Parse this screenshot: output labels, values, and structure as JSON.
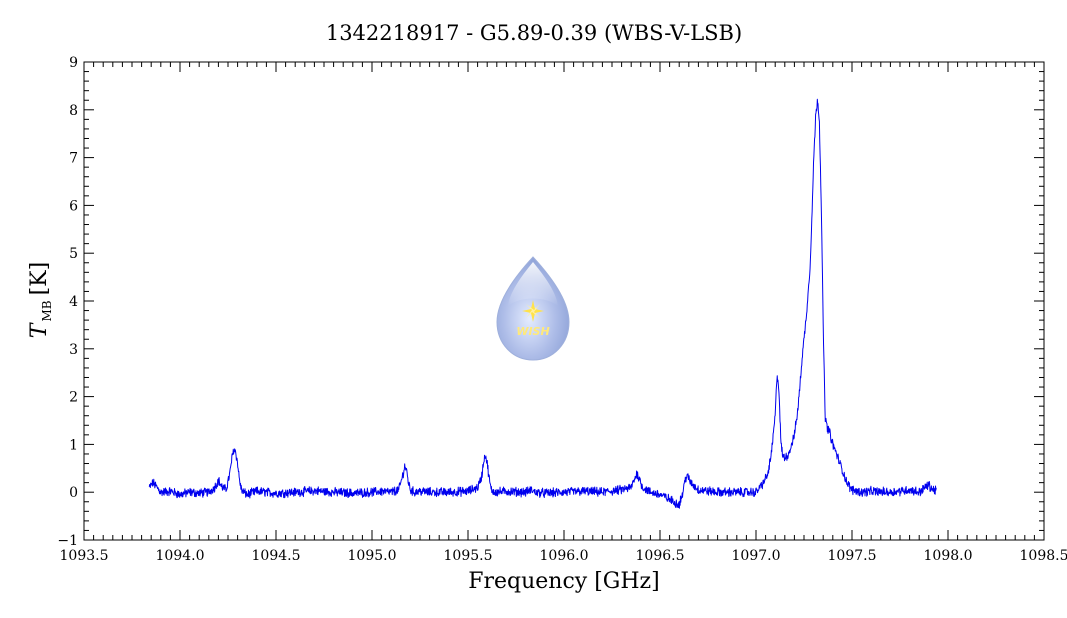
{
  "chart_data": {
    "type": "line",
    "title": "1342218917 - G5.89-0.39 (WBS-V-LSB)",
    "xlabel": "Frequency [GHz]",
    "ylabel_main": "T",
    "ylabel_sub": "MB",
    "ylabel_unit": "[K]",
    "xlim": [
      1093.5,
      1098.5
    ],
    "ylim": [
      -1,
      9
    ],
    "xticks": [
      1093.5,
      1094.0,
      1094.5,
      1095.0,
      1095.5,
      1096.0,
      1096.5,
      1097.0,
      1097.5,
      1098.0,
      1098.5
    ],
    "xtick_labels": [
      "1093.5",
      "1094.0",
      "1094.5",
      "1095.0",
      "1095.5",
      "1096.0",
      "1096.5",
      "1097.0",
      "1097.5",
      "1098.0",
      "1098.5"
    ],
    "yticks": [
      -1,
      0,
      1,
      2,
      3,
      4,
      5,
      6,
      7,
      8,
      9
    ],
    "ytick_labels": [
      "−1",
      "0",
      "1",
      "2",
      "3",
      "4",
      "5",
      "6",
      "7",
      "8",
      "9"
    ],
    "grid": false,
    "line_color": "#0000ee",
    "series": [
      {
        "x": [
          1093.84,
          1093.86,
          1093.9,
          1093.95,
          1094.0,
          1094.05,
          1094.1,
          1094.15,
          1094.18,
          1094.2,
          1094.22,
          1094.24,
          1094.26,
          1094.27,
          1094.28,
          1094.29,
          1094.3,
          1094.31,
          1094.32,
          1094.33,
          1094.35,
          1094.4,
          1094.5,
          1094.6,
          1094.7,
          1094.8,
          1094.9,
          1095.0,
          1095.05,
          1095.1,
          1095.14,
          1095.16,
          1095.17,
          1095.18,
          1095.19,
          1095.2,
          1095.22,
          1095.25,
          1095.3,
          1095.4,
          1095.5,
          1095.55,
          1095.57,
          1095.58,
          1095.59,
          1095.6,
          1095.61,
          1095.62,
          1095.64,
          1095.7,
          1095.8,
          1095.83,
          1095.85,
          1095.9,
          1096.0,
          1096.1,
          1096.2,
          1096.3,
          1096.35,
          1096.37,
          1096.38,
          1096.39,
          1096.41,
          1096.45,
          1096.5,
          1096.55,
          1096.58,
          1096.6,
          1096.62,
          1096.63,
          1096.64,
          1096.66,
          1096.7,
          1096.8,
          1096.9,
          1097.0,
          1097.03,
          1097.06,
          1097.08,
          1097.1,
          1097.11,
          1097.12,
          1097.13,
          1097.14,
          1097.15,
          1097.17,
          1097.2,
          1097.22,
          1097.24,
          1097.26,
          1097.28,
          1097.29,
          1097.3,
          1097.31,
          1097.32,
          1097.33,
          1097.34,
          1097.35,
          1097.36,
          1097.37,
          1097.38,
          1097.4,
          1097.42,
          1097.45,
          1097.48,
          1097.5,
          1097.55,
          1097.6,
          1097.7,
          1097.8,
          1097.85,
          1097.88,
          1097.9,
          1097.92,
          1097.94
        ],
        "y": [
          0.1,
          0.2,
          0.0,
          0.02,
          -0.05,
          0.0,
          -0.02,
          0.0,
          0.1,
          0.25,
          0.1,
          0.05,
          0.4,
          0.7,
          0.9,
          0.85,
          0.6,
          0.25,
          0.05,
          0.0,
          -0.05,
          0.02,
          -0.02,
          0.0,
          0.03,
          0.0,
          -0.02,
          0.0,
          0.02,
          0.0,
          0.05,
          0.35,
          0.55,
          0.45,
          0.2,
          0.05,
          0.0,
          0.02,
          0.0,
          0.0,
          0.02,
          0.1,
          0.3,
          0.6,
          0.8,
          0.6,
          0.3,
          0.05,
          0.0,
          0.02,
          0.0,
          0.05,
          0.0,
          -0.02,
          0.0,
          0.02,
          0.0,
          0.05,
          0.1,
          0.3,
          0.4,
          0.3,
          0.1,
          0.0,
          -0.05,
          -0.15,
          -0.22,
          -0.25,
          0.0,
          0.25,
          0.35,
          0.2,
          0.05,
          0.0,
          0.0,
          0.0,
          0.15,
          0.35,
          0.8,
          1.6,
          2.5,
          2.1,
          1.0,
          0.75,
          0.72,
          0.8,
          1.2,
          1.8,
          2.8,
          3.6,
          4.6,
          5.6,
          6.9,
          7.8,
          8.25,
          7.8,
          6.0,
          3.5,
          1.6,
          1.35,
          1.3,
          1.0,
          0.8,
          0.45,
          0.15,
          0.05,
          0.0,
          0.02,
          0.0,
          0.05,
          0.0,
          0.1,
          0.15,
          0.05,
          0.05
        ]
      }
    ],
    "logo_text": "WISH"
  }
}
